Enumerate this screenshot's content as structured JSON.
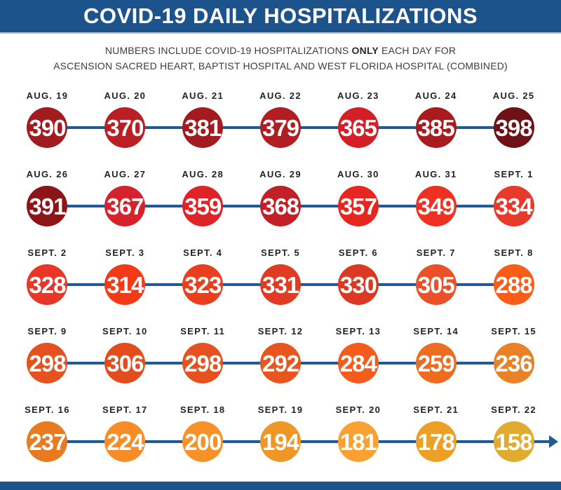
{
  "header": {
    "title": "COVID-19 DAILY HOSPITALIZATIONS",
    "bg": "#1D538B",
    "text_color": "#FFFFFF"
  },
  "subtitle": {
    "line1": {
      "pre": "NUMBERS INCLUDE COVID-19 HOSPITALIZATIONS ",
      "bold": "ONLY",
      "post": " EACH DAY FOR"
    },
    "line2": "ASCENSION SACRED HEART, BAPTIST HOSPITAL AND WEST FLORIDA HOSPITAL (COMBINED)"
  },
  "chart_data": {
    "type": "line",
    "title": "COVID-19 DAILY HOSPITALIZATIONS",
    "x": [
      "AUG. 19",
      "AUG. 20",
      "AUG. 21",
      "AUG. 22",
      "AUG. 23",
      "AUG. 24",
      "AUG. 25",
      "AUG. 26",
      "AUG. 27",
      "AUG. 28",
      "AUG. 29",
      "AUG. 30",
      "AUG. 31",
      "SEPT. 1",
      "SEPT. 2",
      "SEPT. 3",
      "SEPT. 4",
      "SEPT. 5",
      "SEPT. 6",
      "SEPT. 7",
      "SEPT. 8",
      "SEPT. 9",
      "SEPT. 10",
      "SEPT. 11",
      "SEPT. 12",
      "SEPT. 13",
      "SEPT. 14",
      "SEPT. 15",
      "SEPT. 16",
      "SEPT. 17",
      "SEPT. 18",
      "SEPT. 19",
      "SEPT. 20",
      "SEPT. 21",
      "SEPT. 22"
    ],
    "values": [
      390,
      370,
      381,
      379,
      365,
      385,
      398,
      391,
      367,
      359,
      368,
      357,
      349,
      334,
      328,
      314,
      323,
      331,
      330,
      305,
      288,
      298,
      306,
      298,
      292,
      284,
      259,
      236,
      237,
      224,
      200,
      194,
      181,
      178,
      158
    ],
    "point_colors": [
      "#A01C1F",
      "#BA1F23",
      "#A31B1E",
      "#B01E22",
      "#D22026",
      "#A81C1F",
      "#6E1215",
      "#8D1518",
      "#D6222A",
      "#DF2427",
      "#C22026",
      "#E6261F",
      "#EE3120",
      "#E83A2B",
      "#E73726",
      "#F23B16",
      "#EA3F1F",
      "#E03B23",
      "#DA3A23",
      "#EA5129",
      "#FA5D17",
      "#E5511F",
      "#E34D1D",
      "#E5511F",
      "#E7561E",
      "#F55C1B",
      "#ED6C1F",
      "#E98127",
      "#E87A20",
      "#F88D28",
      "#F89127",
      "#EF9726",
      "#F9A233",
      "#EDA026",
      "#E0AB2E"
    ],
    "connector_color": "#1F5C94",
    "value_range": [
      158,
      398
    ],
    "layout": {
      "rows": 5,
      "cols": 7,
      "reading_order": "left-to-right, top-to-bottom",
      "grid": true,
      "legend": "none",
      "trend_arrow": "right, after last point"
    }
  },
  "footer": {
    "bg": "#1D538B"
  }
}
